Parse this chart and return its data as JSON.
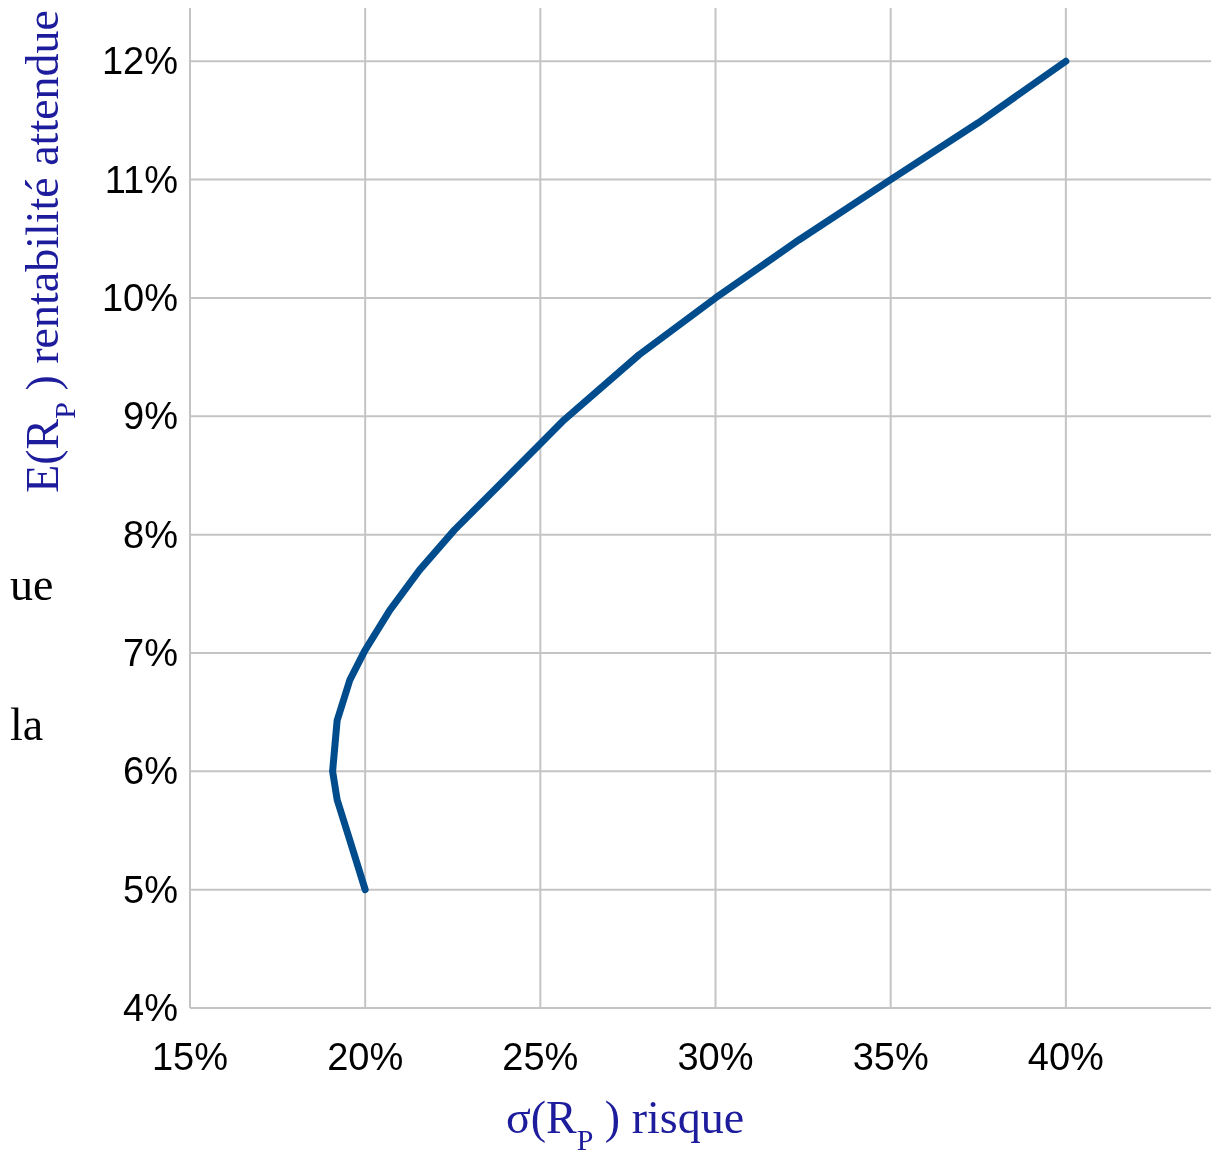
{
  "chart_data": {
    "type": "line",
    "xlabel": "σ(R$_{P}$)  risque",
    "ylabel": "E(R$_{P}$) rentabilité attendue",
    "x": [
      20,
      19.56,
      19.2,
      19.07,
      19.2,
      19.56,
      19.99,
      20.7,
      21.55,
      22.55,
      23.83,
      25.68,
      27.82,
      30,
      32.38,
      35,
      37.5,
      40
    ],
    "series": [
      {
        "color": "#004c8c",
        "values": [
          5,
          5.42,
          5.76,
          6,
          6.43,
          6.77,
          7.02,
          7.36,
          7.7,
          8.04,
          8.42,
          8.97,
          9.52,
          10,
          10.49,
          11,
          11.48,
          12
        ]
      }
    ],
    "xlim": [
      15,
      44.2
    ],
    "xticks": [
      {
        "value": 15,
        "label": "15%"
      },
      {
        "value": 20,
        "label": "20%"
      },
      {
        "value": 25,
        "label": "25%"
      },
      {
        "value": 30,
        "label": "30%"
      },
      {
        "value": 35,
        "label": "35%"
      },
      {
        "value": 40,
        "label": "40%"
      }
    ],
    "ylim": [
      4,
      12.45
    ],
    "yticks": [
      {
        "value": 4,
        "label": "4%"
      },
      {
        "value": 5,
        "label": "5%"
      },
      {
        "value": 6,
        "label": "6%"
      },
      {
        "value": 7,
        "label": "7%"
      },
      {
        "value": 8,
        "label": "8%"
      },
      {
        "value": 9,
        "label": "9%"
      },
      {
        "value": 10,
        "label": "10%"
      },
      {
        "value": 11,
        "label": "11%"
      },
      {
        "value": 12,
        "label": "12%"
      }
    ],
    "grid": true,
    "marker": "none",
    "line_style": "solid",
    "annotations": [
      "ue",
      "la"
    ]
  }
}
